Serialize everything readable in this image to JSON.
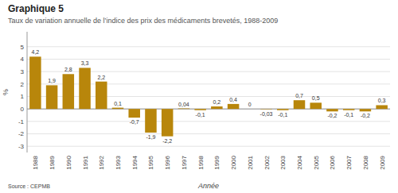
{
  "chart_data": {
    "type": "bar",
    "title": "Graphique 5",
    "subtitle": " Taux de variation annuelle de l’indice des prix des médicaments brevetés, 1988-2009",
    "x_label": "Année",
    "y_label": "%",
    "source": "Source : CEPMB",
    "categories": [
      "1988",
      "1989",
      "1990",
      "1991",
      "1992",
      "1993",
      "1994",
      "1995",
      "1996",
      "1997",
      "1998",
      "1999",
      "2000",
      "2001",
      "2002",
      "2003",
      "2004",
      "2005",
      "2006",
      "2007",
      "2008",
      "2009"
    ],
    "values": [
      4.2,
      1.9,
      2.8,
      3.3,
      2.2,
      0.1,
      -0.7,
      -1.9,
      -2.2,
      0.04,
      -0.1,
      0.2,
      0.4,
      0.0,
      -0.03,
      -0.1,
      0.7,
      0.5,
      -0.2,
      -0.1,
      -0.2,
      0.3
    ],
    "value_labels": [
      "4,2",
      "1,9",
      "2,8",
      "3,3",
      "2,2",
      "0,1",
      "-0,7",
      "-1,9",
      "-2,2",
      "0,04",
      "-0,1",
      "0,2",
      "0,4",
      "0",
      "-0,03",
      "-0,1",
      "0,7",
      "0,5",
      "-0,2",
      "-0,1",
      "-0,2",
      "0,3"
    ],
    "data_labels": true,
    "color": "#b8860b",
    "ylim": [
      -3.5,
      6.2
    ],
    "yticks": [
      -3,
      -2,
      -1,
      0,
      1,
      2,
      3,
      4,
      5
    ],
    "grid": true
  }
}
